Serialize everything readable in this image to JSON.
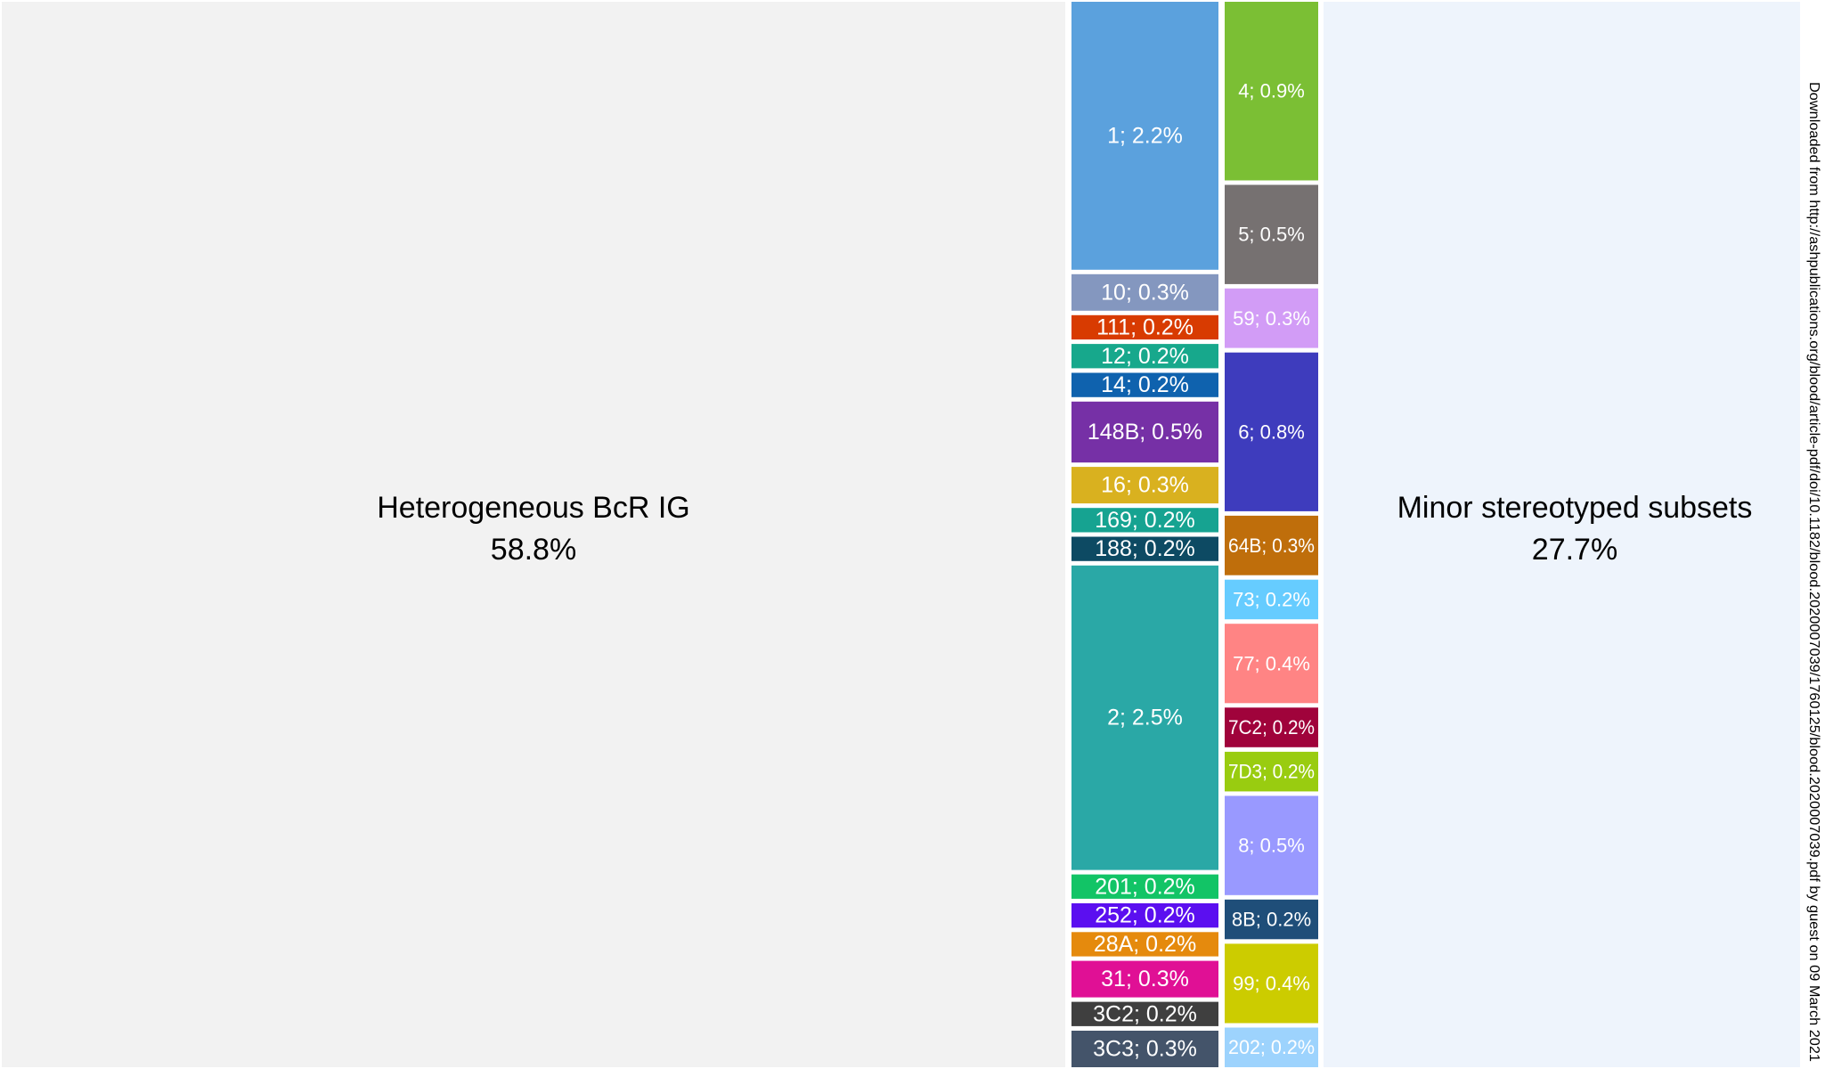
{
  "chart_data": {
    "type": "treemap",
    "title": "",
    "large_blocks": [
      {
        "label": "Heterogeneous BcR IG",
        "value_text": "58.8%",
        "value": 58.8,
        "color": "#f2f2f2"
      },
      {
        "label": "Minor stereotyped subsets",
        "value_text": "27.7%",
        "value": 27.7,
        "color": "#eef4fc"
      }
    ],
    "columns": [
      {
        "cells": [
          {
            "subset": "1",
            "label": "1; 2.2%",
            "percent": 2.2,
            "color": "#5ba1dd"
          },
          {
            "subset": "10",
            "label": "10; 0.3%",
            "percent": 0.3,
            "color": "#8497bf"
          },
          {
            "subset": "111",
            "label": "111; 0.2%",
            "percent": 0.2,
            "color": "#d83b01"
          },
          {
            "subset": "12",
            "label": "12; 0.2%",
            "percent": 0.2,
            "color": "#17a88c"
          },
          {
            "subset": "14",
            "label": "14; 0.2%",
            "percent": 0.2,
            "color": "#0f62ae"
          },
          {
            "subset": "148B",
            "label": "148B; 0.5%",
            "percent": 0.5,
            "color": "#7630a6"
          },
          {
            "subset": "16",
            "label": "16; 0.3%",
            "percent": 0.3,
            "color": "#d9b11f"
          },
          {
            "subset": "169",
            "label": "169; 0.2%",
            "percent": 0.2,
            "color": "#16a391"
          },
          {
            "subset": "188",
            "label": "188; 0.2%",
            "percent": 0.2,
            "color": "#0d4a63"
          },
          {
            "subset": "2",
            "label": "2; 2.5%",
            "percent": 2.5,
            "color": "#2aa8a6"
          },
          {
            "subset": "201",
            "label": "201; 0.2%",
            "percent": 0.2,
            "color": "#12c466"
          },
          {
            "subset": "252",
            "label": "252; 0.2%",
            "percent": 0.2,
            "color": "#5b0ff0"
          },
          {
            "subset": "28A",
            "label": "28A; 0.2%",
            "percent": 0.2,
            "color": "#e58a0d"
          },
          {
            "subset": "31",
            "label": "31; 0.3%",
            "percent": 0.3,
            "color": "#e01095"
          },
          {
            "subset": "3C2",
            "label": "3C2; 0.2%",
            "percent": 0.2,
            "color": "#3f3f3f"
          },
          {
            "subset": "3C3",
            "label": "3C3; 0.3%",
            "percent": 0.3,
            "color": "#44546a"
          }
        ]
      },
      {
        "cells": [
          {
            "subset": "4",
            "label": "4; 0.9%",
            "percent": 0.9,
            "color": "#7bbf34"
          },
          {
            "subset": "5",
            "label": "5; 0.5%",
            "percent": 0.5,
            "color": "#767171"
          },
          {
            "subset": "59",
            "label": "59; 0.3%",
            "percent": 0.3,
            "color": "#d29cf6"
          },
          {
            "subset": "6",
            "label": "6; 0.8%",
            "percent": 0.8,
            "color": "#3e3cbd"
          },
          {
            "subset": "64B",
            "label": "64B; 0.3%",
            "percent": 0.3,
            "color": "#bf6e0b"
          },
          {
            "subset": "73",
            "label": "73; 0.2%",
            "percent": 0.2,
            "color": "#66ccff"
          },
          {
            "subset": "77",
            "label": "77; 0.4%",
            "percent": 0.4,
            "color": "#ff8484"
          },
          {
            "subset": "7C2",
            "label": "7C2; 0.2%",
            "percent": 0.2,
            "color": "#a0033b"
          },
          {
            "subset": "7D3",
            "label": "7D3; 0.2%",
            "percent": 0.2,
            "color": "#99cc10"
          },
          {
            "subset": "8",
            "label": "8; 0.5%",
            "percent": 0.5,
            "color": "#9999ff"
          },
          {
            "subset": "8B",
            "label": "8B; 0.2%",
            "percent": 0.2,
            "color": "#1f4e79"
          },
          {
            "subset": "99",
            "label": "99; 0.4%",
            "percent": 0.4,
            "color": "#cccc00"
          },
          {
            "subset": "202",
            "label": "202; 0.2%",
            "percent": 0.2,
            "color": "#9dd3fd"
          }
        ]
      }
    ]
  },
  "watermark": "Downloaded from http://ashpublications.org/blood/article-pdf/doi/10.1182/blood.2020007039/1760125/blood.2020007039.pdf by guest on 09 March 2021"
}
